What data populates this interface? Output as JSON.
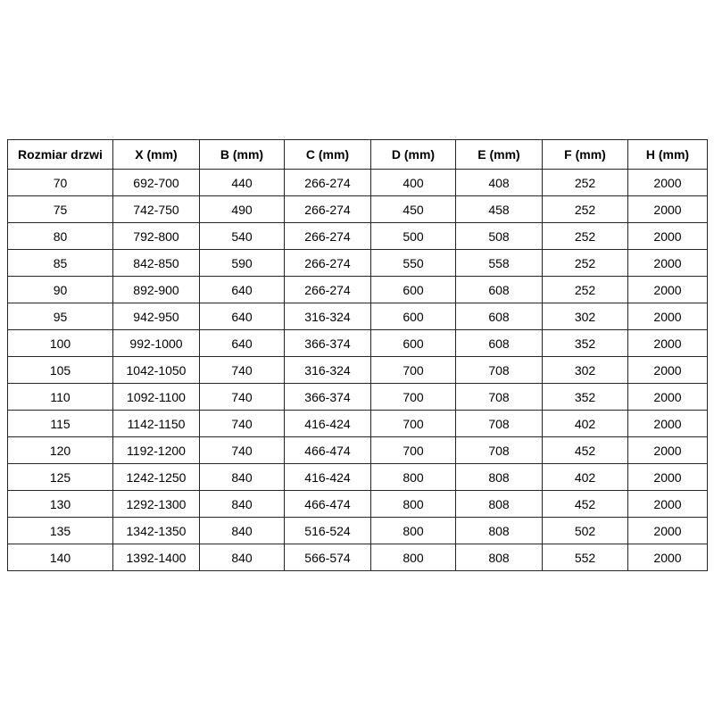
{
  "page": {
    "background_color": "#ffffff",
    "border_color": "#262626",
    "text_color": "#000000"
  },
  "table": {
    "columns": [
      "Rozmiar drzwi",
      "X (mm)",
      "B (mm)",
      "C (mm)",
      "D (mm)",
      "E (mm)",
      "F (mm)",
      "H (mm)"
    ],
    "rows": [
      [
        "70",
        "692-700",
        "440",
        "266-274",
        "400",
        "408",
        "252",
        "2000"
      ],
      [
        "75",
        "742-750",
        "490",
        "266-274",
        "450",
        "458",
        "252",
        "2000"
      ],
      [
        "80",
        "792-800",
        "540",
        "266-274",
        "500",
        "508",
        "252",
        "2000"
      ],
      [
        "85",
        "842-850",
        "590",
        "266-274",
        "550",
        "558",
        "252",
        "2000"
      ],
      [
        "90",
        "892-900",
        "640",
        "266-274",
        "600",
        "608",
        "252",
        "2000"
      ],
      [
        "95",
        "942-950",
        "640",
        "316-324",
        "600",
        "608",
        "302",
        "2000"
      ],
      [
        "100",
        "992-1000",
        "640",
        "366-374",
        "600",
        "608",
        "352",
        "2000"
      ],
      [
        "105",
        "1042-1050",
        "740",
        "316-324",
        "700",
        "708",
        "302",
        "2000"
      ],
      [
        "110",
        "1092-1100",
        "740",
        "366-374",
        "700",
        "708",
        "352",
        "2000"
      ],
      [
        "115",
        "1142-1150",
        "740",
        "416-424",
        "700",
        "708",
        "402",
        "2000"
      ],
      [
        "120",
        "1192-1200",
        "740",
        "466-474",
        "700",
        "708",
        "452",
        "2000"
      ],
      [
        "125",
        "1242-1250",
        "840",
        "416-424",
        "800",
        "808",
        "402",
        "2000"
      ],
      [
        "130",
        "1292-1300",
        "840",
        "466-474",
        "800",
        "808",
        "452",
        "2000"
      ],
      [
        "135",
        "1342-1350",
        "840",
        "516-524",
        "800",
        "808",
        "502",
        "2000"
      ],
      [
        "140",
        "1392-1400",
        "840",
        "566-574",
        "800",
        "808",
        "552",
        "2000"
      ]
    ]
  }
}
